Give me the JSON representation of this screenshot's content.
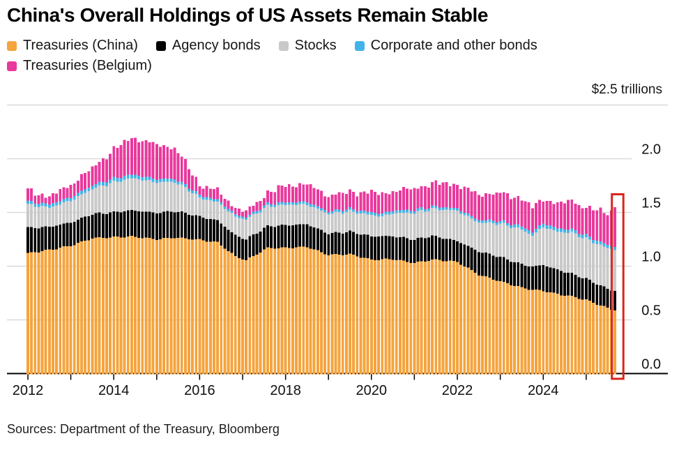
{
  "header": {
    "title": "China's Overall Holdings of US Assets Remain Stable"
  },
  "legend": {
    "items": [
      {
        "label": "Treasuries (China)"
      },
      {
        "label": "Agency bonds"
      },
      {
        "label": "Stocks"
      },
      {
        "label": "Corporate and other bonds"
      },
      {
        "label": "Treasuries (Belgium)"
      }
    ]
  },
  "footer": {
    "source": "Sources: Department of the Treasury, Bloomberg"
  },
  "chart_data": {
    "type": "bar",
    "stacked": true,
    "frequency": "monthly",
    "x_start": "2012-01",
    "x_end": "2025-09",
    "months_total": 165,
    "unit_label": "$2.5 trillions",
    "ylim": [
      0,
      2.5
    ],
    "top_rule_value": 2.5,
    "grid": true,
    "legend_position": "top",
    "axis_side": "right",
    "colors": {
      "grid": "#DADADA",
      "axis": "#000000",
      "text": "#111111"
    },
    "yticks": [
      {
        "value": 0.0,
        "label": "0.0"
      },
      {
        "value": 0.5,
        "label": "0.5"
      },
      {
        "value": 1.0,
        "label": "1.0"
      },
      {
        "value": 1.5,
        "label": "1.5"
      },
      {
        "value": 2.0,
        "label": "2.0"
      }
    ],
    "xticks": [
      {
        "year": 2012,
        "label": "2012"
      },
      {
        "year": 2013,
        "label": ""
      },
      {
        "year": 2014,
        "label": "2014"
      },
      {
        "year": 2015,
        "label": ""
      },
      {
        "year": 2016,
        "label": "2016"
      },
      {
        "year": 2017,
        "label": ""
      },
      {
        "year": 2018,
        "label": "2018"
      },
      {
        "year": 2019,
        "label": ""
      },
      {
        "year": 2020,
        "label": "2020"
      },
      {
        "year": 2021,
        "label": ""
      },
      {
        "year": 2022,
        "label": "2022"
      },
      {
        "year": 2023,
        "label": ""
      },
      {
        "year": 2024,
        "label": "2024"
      },
      {
        "year": 2025,
        "label": ""
      }
    ],
    "highlight": {
      "enabled": true,
      "target": "last-bar",
      "color": "#D8251D"
    },
    "series_note": "values in USD trillions; anchors are [monthIndex from 2012-01, value], linearly interpolated to monthly bars",
    "series": [
      {
        "name": "Treasuries (China)",
        "color": "#F5A43E",
        "noise": [
          [
            0.007,
            1.33,
            0.7
          ]
        ],
        "anchors": [
          [
            0,
            1.12
          ],
          [
            6,
            1.15
          ],
          [
            12,
            1.19
          ],
          [
            18,
            1.26
          ],
          [
            24,
            1.27
          ],
          [
            29,
            1.275
          ],
          [
            36,
            1.25
          ],
          [
            41,
            1.265
          ],
          [
            45,
            1.255
          ],
          [
            48,
            1.245
          ],
          [
            53,
            1.22
          ],
          [
            58,
            1.09
          ],
          [
            61,
            1.055
          ],
          [
            67,
            1.17
          ],
          [
            72,
            1.17
          ],
          [
            78,
            1.18
          ],
          [
            84,
            1.105
          ],
          [
            90,
            1.11
          ],
          [
            96,
            1.06
          ],
          [
            102,
            1.065
          ],
          [
            108,
            1.03
          ],
          [
            113,
            1.06
          ],
          [
            117,
            1.05
          ],
          [
            120,
            1.04
          ],
          [
            126,
            0.92
          ],
          [
            132,
            0.858
          ],
          [
            138,
            0.8
          ],
          [
            141,
            0.78
          ],
          [
            144,
            0.77
          ],
          [
            148,
            0.74
          ],
          [
            152,
            0.718
          ],
          [
            156,
            0.685
          ],
          [
            160,
            0.635
          ],
          [
            162,
            0.61
          ],
          [
            164,
            0.588
          ]
        ]
      },
      {
        "name": "Agency bonds",
        "color": "#000000",
        "noise": [
          [
            0.004,
            1.61,
            1.2
          ]
        ],
        "anchors": [
          [
            0,
            0.235
          ],
          [
            6,
            0.215
          ],
          [
            12,
            0.215
          ],
          [
            18,
            0.225
          ],
          [
            24,
            0.23
          ],
          [
            29,
            0.245
          ],
          [
            36,
            0.245
          ],
          [
            41,
            0.245
          ],
          [
            45,
            0.23
          ],
          [
            48,
            0.215
          ],
          [
            53,
            0.205
          ],
          [
            58,
            0.195
          ],
          [
            61,
            0.195
          ],
          [
            67,
            0.2
          ],
          [
            72,
            0.21
          ],
          [
            78,
            0.21
          ],
          [
            84,
            0.198
          ],
          [
            90,
            0.21
          ],
          [
            96,
            0.218
          ],
          [
            102,
            0.213
          ],
          [
            108,
            0.218
          ],
          [
            113,
            0.22
          ],
          [
            120,
            0.194
          ],
          [
            126,
            0.216
          ],
          [
            132,
            0.227
          ],
          [
            138,
            0.217
          ],
          [
            141,
            0.215
          ],
          [
            144,
            0.24
          ],
          [
            148,
            0.226
          ],
          [
            152,
            0.212
          ],
          [
            156,
            0.195
          ],
          [
            160,
            0.185
          ],
          [
            162,
            0.18
          ],
          [
            164,
            0.182
          ]
        ]
      },
      {
        "name": "Stocks",
        "color": "#C9C9C9",
        "noise": [
          [
            0.006,
            1.9,
            0.3
          ]
        ],
        "anchors": [
          [
            0,
            0.215
          ],
          [
            6,
            0.18
          ],
          [
            12,
            0.205
          ],
          [
            18,
            0.235
          ],
          [
            24,
            0.28
          ],
          [
            29,
            0.3
          ],
          [
            36,
            0.285
          ],
          [
            41,
            0.275
          ],
          [
            45,
            0.225
          ],
          [
            48,
            0.175
          ],
          [
            53,
            0.17
          ],
          [
            58,
            0.175
          ],
          [
            61,
            0.185
          ],
          [
            67,
            0.185
          ],
          [
            72,
            0.19
          ],
          [
            78,
            0.185
          ],
          [
            84,
            0.183
          ],
          [
            90,
            0.19
          ],
          [
            96,
            0.197
          ],
          [
            99,
            0.185
          ],
          [
            102,
            0.215
          ],
          [
            108,
            0.248
          ],
          [
            113,
            0.252
          ],
          [
            120,
            0.28
          ],
          [
            126,
            0.27
          ],
          [
            132,
            0.31
          ],
          [
            138,
            0.325
          ],
          [
            141,
            0.29
          ],
          [
            144,
            0.356
          ],
          [
            148,
            0.354
          ],
          [
            152,
            0.38
          ],
          [
            156,
            0.376
          ],
          [
            160,
            0.375
          ],
          [
            164,
            0.38
          ]
        ]
      },
      {
        "name": "Corporate and other bonds",
        "color": "#42B4E9",
        "noise": [],
        "anchors": [
          [
            0,
            0.03
          ],
          [
            12,
            0.03
          ],
          [
            24,
            0.035
          ],
          [
            36,
            0.03
          ],
          [
            48,
            0.025
          ],
          [
            61,
            0.02
          ],
          [
            72,
            0.025
          ],
          [
            84,
            0.022
          ],
          [
            96,
            0.025
          ],
          [
            108,
            0.025
          ],
          [
            120,
            0.022
          ],
          [
            132,
            0.024
          ],
          [
            144,
            0.034
          ],
          [
            152,
            0.03
          ],
          [
            164,
            0.03
          ]
        ]
      },
      {
        "name": "Treasuries (Belgium)",
        "color": "#E9399C",
        "noise": [
          [
            0.016,
            2.17,
            0.0
          ],
          [
            0.01,
            0.71,
            2.0
          ]
        ],
        "anchors": [
          [
            0,
            0.105
          ],
          [
            6,
            0.07
          ],
          [
            12,
            0.12
          ],
          [
            18,
            0.16
          ],
          [
            24,
            0.27
          ],
          [
            29,
            0.345
          ],
          [
            36,
            0.32
          ],
          [
            41,
            0.29
          ],
          [
            45,
            0.18
          ],
          [
            48,
            0.095
          ],
          [
            53,
            0.085
          ],
          [
            58,
            0.062
          ],
          [
            61,
            0.052
          ],
          [
            67,
            0.105
          ],
          [
            72,
            0.155
          ],
          [
            78,
            0.165
          ],
          [
            84,
            0.148
          ],
          [
            90,
            0.155
          ],
          [
            96,
            0.188
          ],
          [
            102,
            0.18
          ],
          [
            108,
            0.203
          ],
          [
            113,
            0.21
          ],
          [
            117,
            0.23
          ],
          [
            120,
            0.22
          ],
          [
            126,
            0.24
          ],
          [
            132,
            0.26
          ],
          [
            138,
            0.26
          ],
          [
            141,
            0.23
          ],
          [
            144,
            0.226
          ],
          [
            148,
            0.23
          ],
          [
            152,
            0.27
          ],
          [
            156,
            0.256
          ],
          [
            160,
            0.292
          ],
          [
            162,
            0.287
          ],
          [
            164,
            0.368
          ]
        ]
      }
    ]
  }
}
